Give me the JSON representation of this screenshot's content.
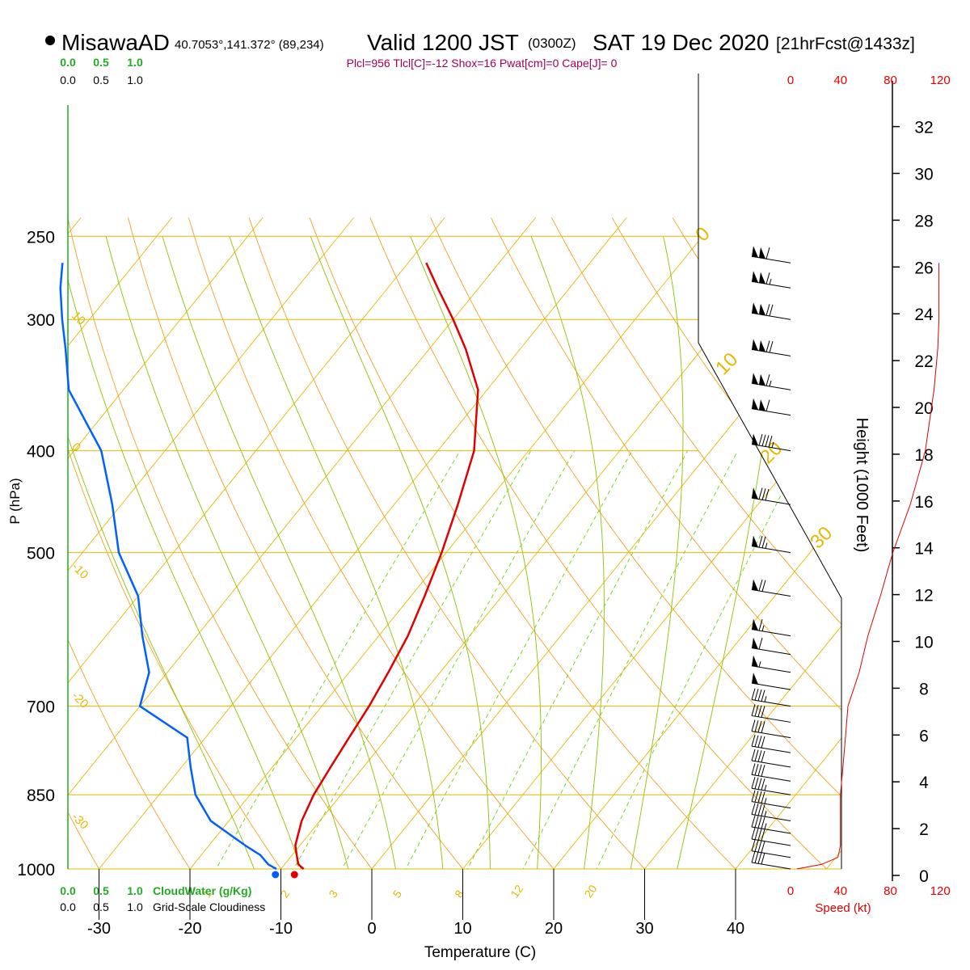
{
  "header": {
    "station": "MisawaAD",
    "coords": "40.7053°,141.372° (89,234)",
    "valid_prefix": "Valid 1200 JST",
    "valid_z": "(0300Z)",
    "valid_day": "SAT 19 Dec 2020",
    "forecast": "[21hrFcst@1433z]",
    "indices": "Plcl=956 Tlcl[C]=-12 Shox=16 Pwat[cm]=0 Cape[J]= 0"
  },
  "colors": {
    "temperature": "#e00000",
    "dewpoint": "#0060ff",
    "isotherm": "#e6b800",
    "dry_adiabat": "#f0a020",
    "moist_adiabat": "#8cc000",
    "mixing_ratio": "#7ed321",
    "cloudwater": "#22aa22",
    "wind_speed": "#e00000",
    "indices_text": "#a0005a"
  },
  "chart_data": {
    "type": "line",
    "xlabel": "Temperature (C)",
    "ylabel": "P (hPa)",
    "y2label": "Height (1000 Feet)",
    "x_ticks": [
      -30,
      -20,
      -10,
      0,
      10,
      20,
      30,
      40
    ],
    "pressure_ticks": [
      250,
      300,
      400,
      500,
      700,
      850,
      1000
    ],
    "height_ticks": [
      0,
      2,
      4,
      6,
      8,
      10,
      12,
      14,
      16,
      18,
      20,
      22,
      24,
      26,
      28,
      30,
      32
    ],
    "isotherm_labels": [
      "10",
      "0",
      "-10",
      "-20",
      "-30"
    ],
    "skewed_labels": [
      "0",
      "10",
      "20",
      "30"
    ],
    "mixing_ratio_labels": [
      "1",
      "2",
      "3",
      "5",
      "8",
      "12",
      "20"
    ],
    "cloudwater_axis": {
      "label": "CloudWater (g/Kg)",
      "ticks": [
        "0.0",
        "0.5",
        "1.0"
      ]
    },
    "cloudiness_axis": {
      "label": "Grid-Scale Cloudiness",
      "ticks": [
        "0.0",
        "0.5",
        "1.0"
      ]
    },
    "wind_speed_axis": {
      "label": "Speed (kt)",
      "ticks": [
        "0",
        "40",
        "80",
        "120"
      ]
    },
    "series": [
      {
        "name": "Temperature",
        "points": [
          [
            1000,
            -7.5
          ],
          [
            990,
            -8.5
          ],
          [
            970,
            -9.5
          ],
          [
            950,
            -10.5
          ],
          [
            900,
            -12
          ],
          [
            850,
            -13
          ],
          [
            800,
            -13.6
          ],
          [
            750,
            -14.2
          ],
          [
            700,
            -14.8
          ],
          [
            650,
            -15.7
          ],
          [
            600,
            -16.8
          ],
          [
            550,
            -18.5
          ],
          [
            500,
            -20.5
          ],
          [
            450,
            -23
          ],
          [
            400,
            -26
          ],
          [
            350,
            -31
          ],
          [
            320,
            -36
          ],
          [
            300,
            -40
          ],
          [
            280,
            -44.5
          ],
          [
            265,
            -48
          ]
        ]
      },
      {
        "name": "Dewpoint",
        "points": [
          [
            1000,
            -10.5
          ],
          [
            990,
            -11.8
          ],
          [
            970,
            -13.5
          ],
          [
            950,
            -16
          ],
          [
            900,
            -22
          ],
          [
            850,
            -26
          ],
          [
            800,
            -29
          ],
          [
            750,
            -32
          ],
          [
            700,
            -40
          ],
          [
            650,
            -42
          ],
          [
            600,
            -46
          ],
          [
            550,
            -50
          ],
          [
            500,
            -56
          ],
          [
            450,
            -61
          ],
          [
            400,
            -67
          ],
          [
            350,
            -76
          ],
          [
            320,
            -80
          ],
          [
            300,
            -83
          ],
          [
            280,
            -86
          ],
          [
            265,
            -88
          ]
        ]
      }
    ],
    "surface_markers": {
      "temperature": [
        1000,
        -7.8
      ],
      "dewpoint": [
        1000,
        -10.6
      ]
    },
    "wind_barbs": [
      {
        "p": 1000,
        "dir": 270,
        "spd": 40
      },
      {
        "p": 975,
        "dir": 275,
        "spd": 40
      },
      {
        "p": 950,
        "dir": 275,
        "spd": 40
      },
      {
        "p": 925,
        "dir": 280,
        "spd": 45
      },
      {
        "p": 900,
        "dir": 280,
        "spd": 45
      },
      {
        "p": 875,
        "dir": 280,
        "spd": 45
      },
      {
        "p": 850,
        "dir": 280,
        "spd": 45
      },
      {
        "p": 825,
        "dir": 280,
        "spd": 40
      },
      {
        "p": 800,
        "dir": 280,
        "spd": 40
      },
      {
        "p": 775,
        "dir": 280,
        "spd": 40
      },
      {
        "p": 750,
        "dir": 280,
        "spd": 40
      },
      {
        "p": 725,
        "dir": 280,
        "spd": 40
      },
      {
        "p": 700,
        "dir": 280,
        "spd": 45
      },
      {
        "p": 675,
        "dir": 280,
        "spd": 50
      },
      {
        "p": 650,
        "dir": 280,
        "spd": 55
      },
      {
        "p": 625,
        "dir": 280,
        "spd": 60
      },
      {
        "p": 600,
        "dir": 280,
        "spd": 65
      },
      {
        "p": 550,
        "dir": 280,
        "spd": 70
      },
      {
        "p": 500,
        "dir": 280,
        "spd": 75
      },
      {
        "p": 450,
        "dir": 280,
        "spd": 80
      },
      {
        "p": 400,
        "dir": 280,
        "spd": 95
      },
      {
        "p": 370,
        "dir": 280,
        "spd": 110
      },
      {
        "p": 350,
        "dir": 280,
        "spd": 115
      },
      {
        "p": 325,
        "dir": 280,
        "spd": 120
      },
      {
        "p": 300,
        "dir": 280,
        "spd": 120
      },
      {
        "p": 280,
        "dir": 280,
        "spd": 115
      },
      {
        "p": 265,
        "dir": 280,
        "spd": 110
      }
    ],
    "wind_speed_profile": [
      [
        1000,
        5
      ],
      [
        990,
        25
      ],
      [
        975,
        38
      ],
      [
        950,
        40
      ],
      [
        900,
        40
      ],
      [
        850,
        40
      ],
      [
        800,
        42
      ],
      [
        750,
        44
      ],
      [
        700,
        46
      ],
      [
        650,
        55
      ],
      [
        600,
        62
      ],
      [
        550,
        72
      ],
      [
        500,
        82
      ],
      [
        450,
        96
      ],
      [
        400,
        108
      ],
      [
        350,
        115
      ],
      [
        320,
        118
      ],
      [
        300,
        119
      ],
      [
        280,
        119
      ],
      [
        265,
        119
      ]
    ]
  }
}
